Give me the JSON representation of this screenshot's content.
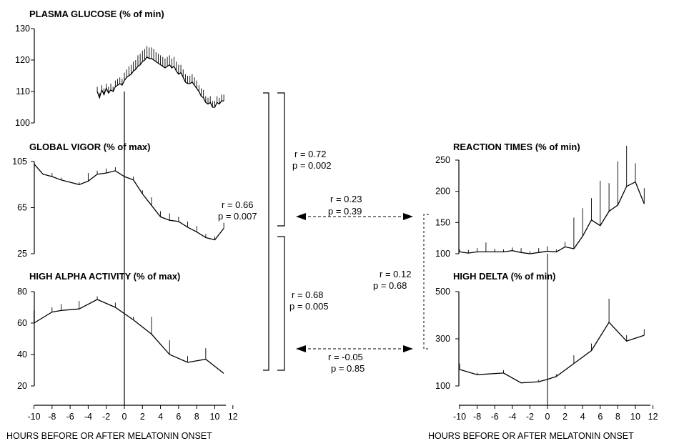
{
  "chart_data": [
    {
      "id": "glucose",
      "type": "line",
      "title": "PLASMA GLUCOSE (% of min)",
      "yticks": [
        100,
        110,
        120,
        130
      ],
      "ylim": [
        100,
        130
      ],
      "x": [
        -3.0,
        -2.75,
        -2.5,
        -2.25,
        -2.0,
        -1.75,
        -1.5,
        -1.25,
        -1.0,
        -0.75,
        -0.5,
        -0.25,
        0.0,
        0.25,
        0.5,
        0.75,
        1.0,
        1.25,
        1.5,
        1.75,
        2.0,
        2.25,
        2.5,
        2.75,
        3.0,
        3.25,
        3.5,
        3.75,
        4.0,
        4.25,
        4.5,
        4.75,
        5.0,
        5.25,
        5.5,
        5.75,
        6.0,
        6.25,
        6.5,
        6.75,
        7.0,
        7.25,
        7.5,
        7.75,
        8.0,
        8.25,
        8.5,
        8.75,
        9.0,
        9.25,
        9.5,
        9.75,
        10.0,
        10.25,
        10.5,
        10.75,
        11.0
      ],
      "values": [
        110.0,
        108.0,
        110.5,
        109.0,
        111.0,
        109.5,
        110.5,
        110.0,
        111.5,
        112.0,
        112.5,
        112.0,
        113.5,
        114.5,
        115.0,
        115.5,
        116.5,
        117.0,
        118.0,
        118.5,
        119.5,
        120.0,
        121.0,
        120.5,
        120.5,
        120.0,
        119.5,
        119.0,
        118.5,
        118.0,
        117.5,
        118.0,
        118.5,
        117.5,
        118.0,
        116.5,
        115.5,
        116.0,
        114.5,
        113.0,
        112.5,
        112.5,
        113.0,
        112.0,
        111.0,
        110.0,
        108.5,
        108.0,
        106.5,
        106.0,
        106.5,
        105.0,
        105.0,
        106.5,
        106.0,
        107.0,
        107.0
      ],
      "errors": [
        1.5,
        1.5,
        1.5,
        2.0,
        1.5,
        2.0,
        2.0,
        1.5,
        2.0,
        2.0,
        2.0,
        2.0,
        2.5,
        2.5,
        3.0,
        3.0,
        3.0,
        3.0,
        3.5,
        3.5,
        3.5,
        3.5,
        3.5,
        3.5,
        3.5,
        3.5,
        3.0,
        3.0,
        3.0,
        3.0,
        3.0,
        3.0,
        3.0,
        3.0,
        3.0,
        3.0,
        3.0,
        2.5,
        2.5,
        2.5,
        2.5,
        2.5,
        2.5,
        2.5,
        2.5,
        2.0,
        2.5,
        2.5,
        2.0,
        2.0,
        2.0,
        2.0,
        2.0,
        2.0,
        2.0,
        2.0,
        2.0
      ]
    },
    {
      "id": "vigor",
      "type": "line",
      "title": "GLOBAL VIGOR (% of max)",
      "yticks": [
        25,
        65,
        105
      ],
      "ylim": [
        25,
        105
      ],
      "x": [
        -10,
        -9,
        -8,
        -7,
        -6,
        -5,
        -4,
        -3,
        -2,
        -1,
        0,
        1,
        2,
        3,
        4,
        5,
        6,
        7,
        8,
        9,
        10,
        11
      ],
      "values": [
        103,
        94,
        92,
        89,
        87,
        85,
        88,
        94,
        95,
        97,
        92,
        89,
        77,
        67,
        57,
        54,
        53,
        48,
        44,
        39,
        37,
        47
      ],
      "errors": [
        0,
        0,
        3,
        2,
        0,
        2,
        7,
        3,
        4,
        3,
        6,
        3,
        3,
        7,
        5,
        6,
        4,
        5,
        5,
        3,
        3,
        5
      ]
    },
    {
      "id": "alpha",
      "type": "line",
      "title": "HIGH ALPHA ACTIVITY (% of max)",
      "yticks": [
        20,
        40,
        60,
        80
      ],
      "ylim": [
        20,
        80
      ],
      "x": [
        -10,
        -8,
        -7,
        -5,
        -3,
        -1,
        1,
        3,
        5,
        7,
        9,
        11
      ],
      "values": [
        60,
        67,
        68,
        69,
        75,
        70,
        62,
        53,
        40,
        35,
        37,
        28
      ],
      "errors": [
        8,
        3,
        4,
        5,
        2,
        3,
        2,
        11,
        9,
        4,
        7,
        0
      ]
    },
    {
      "id": "reaction",
      "type": "line",
      "title": "REACTION TIMES (% of min)",
      "yticks": [
        100,
        150,
        200,
        250
      ],
      "ylim": [
        100,
        250
      ],
      "x": [
        -10,
        -9,
        -8,
        -7,
        -6,
        -5,
        -4,
        -3,
        -2,
        -1,
        0,
        1,
        2,
        3,
        4,
        5,
        6,
        7,
        8,
        9,
        10,
        11
      ],
      "values": [
        103,
        101,
        103,
        103,
        103,
        103,
        105,
        102,
        100,
        102,
        104,
        103,
        111,
        108,
        128,
        154,
        145,
        168,
        178,
        208,
        215,
        180
      ],
      "errors": [
        4,
        5,
        6,
        15,
        5,
        4,
        5,
        7,
        4,
        7,
        8,
        4,
        8,
        50,
        45,
        35,
        72,
        45,
        70,
        65,
        30,
        25
      ]
    },
    {
      "id": "delta",
      "type": "line",
      "title": "HIGH DELTA (% of min)",
      "yticks": [
        100,
        300,
        500
      ],
      "ylim": [
        100,
        500
      ],
      "x": [
        -10,
        -8,
        -5,
        -3,
        -1,
        0,
        1,
        3,
        5,
        7,
        9,
        11
      ],
      "values": [
        170,
        148,
        155,
        113,
        118,
        128,
        140,
        195,
        250,
        370,
        290,
        315
      ],
      "errors": [
        25,
        8,
        12,
        0,
        8,
        5,
        10,
        35,
        30,
        100,
        25,
        25
      ]
    }
  ],
  "x_axes": [
    {
      "id": "left",
      "ticks": [
        "-10",
        "-8",
        "-6",
        "-4",
        "-2",
        "0",
        "2",
        "4",
        "6",
        "8",
        "10",
        "12"
      ],
      "xlabel": "HOURS BEFORE OR AFTER MELATONIN ONSET"
    },
    {
      "id": "right",
      "ticks": [
        "-10",
        "-8",
        "-6",
        "-4",
        "-2",
        "0",
        "2",
        "4",
        "6",
        "8",
        "10",
        "12"
      ],
      "xlabel": "HOURS BEFORE OR AFTER MELATONIN ONSET"
    }
  ],
  "correlations": [
    {
      "id": "glucose-vigor",
      "r": "r = 0.72",
      "p": "p = 0.002"
    },
    {
      "id": "vigor-alpha",
      "r": "r = 0.66",
      "p": "p = 0.007"
    },
    {
      "id": "alpha-glucose",
      "r": "r = 0.68",
      "p": "p = 0.005"
    },
    {
      "id": "vigor-reaction",
      "r": "r = 0.23",
      "p": "p = 0.39"
    },
    {
      "id": "alpha-delta",
      "r": "r = -0.05",
      "p": "p = 0.85"
    },
    {
      "id": "reaction-delta",
      "r": "r = 0.12",
      "p": "p = 0.68"
    }
  ]
}
